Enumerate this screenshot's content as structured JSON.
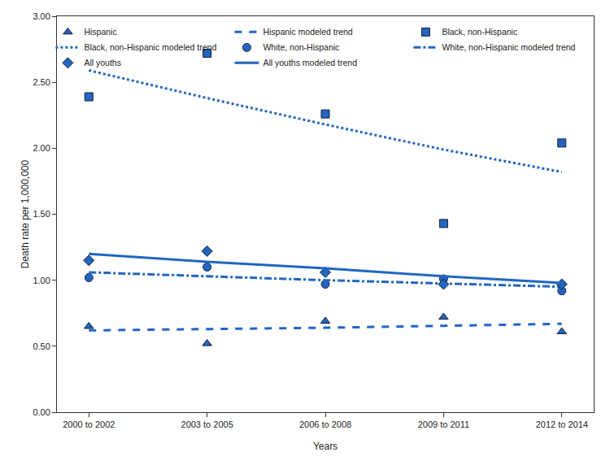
{
  "chart_data": {
    "type": "scatter",
    "x_label": "Years",
    "y_label": "Death rate per 1,000,000",
    "categories": [
      "2000 to 2002",
      "2003 to 2005",
      "2006 to 2008",
      "2009 to 2011",
      "2012 to 2014"
    ],
    "ylim": [
      0,
      3
    ],
    "yticks": [
      {
        "value": 0,
        "label": "0.00"
      },
      {
        "value": 0.5,
        "label": "0.50"
      },
      {
        "value": 1,
        "label": "1.00"
      },
      {
        "value": 1.5,
        "label": "1.50"
      },
      {
        "value": 2,
        "label": "2.00"
      },
      {
        "value": 2.5,
        "label": "2.50"
      },
      {
        "value": 3,
        "label": "3.00"
      }
    ],
    "grid": false,
    "legend": "top right",
    "series": [
      {
        "name": "Hispanic",
        "type": "scatter",
        "marker": "triangle",
        "color": "#2166c2",
        "values": [
          0.65,
          0.52,
          0.69,
          0.72,
          0.61
        ]
      },
      {
        "name": "Hispanic modeled trend",
        "type": "line",
        "line_style": "dash",
        "color": "#2166c2",
        "values": [
          0.62,
          0.63,
          0.64,
          0.655,
          0.67
        ]
      },
      {
        "name": "Black, non-Hispanic",
        "type": "scatter",
        "marker": "square",
        "color": "#2166c2",
        "values": [
          2.39,
          2.72,
          2.26,
          1.43,
          2.04
        ]
      },
      {
        "name": "Black, non-Hispanic modeled trend",
        "type": "line",
        "line_style": "dot",
        "color": "#2166c2",
        "values": [
          2.59,
          2.38,
          2.18,
          1.99,
          1.82
        ]
      },
      {
        "name": "White, non-Hispanic",
        "type": "scatter",
        "marker": "circle",
        "color": "#2166c2",
        "values": [
          1.02,
          1.1,
          0.97,
          1.01,
          0.92
        ]
      },
      {
        "name": "White, non-Hispanic modeled trend",
        "type": "line",
        "line_style": "dashdot",
        "color": "#2166c2",
        "values": [
          1.06,
          1.03,
          1.0,
          0.975,
          0.95
        ]
      },
      {
        "name": "All youths",
        "type": "scatter",
        "marker": "diamond",
        "color": "#2166c2",
        "values": [
          1.15,
          1.22,
          1.06,
          0.97,
          0.97
        ]
      },
      {
        "name": "All youths modeled trend",
        "type": "line",
        "line_style": "solid",
        "color": "#2166c2",
        "values": [
          1.2,
          1.14,
          1.09,
          1.03,
          0.98
        ]
      }
    ]
  }
}
